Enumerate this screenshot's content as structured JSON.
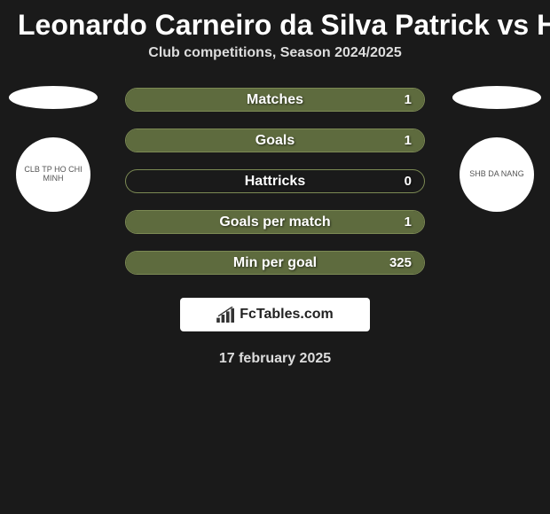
{
  "title": "Leonardo Carneiro da Silva Patrick vs HÃ",
  "subtitle": "Club competitions, Season 2024/2025",
  "date": "17 february 2025",
  "brand": "FcTables.com",
  "background_color": "#1a1a1a",
  "ellipse_color": "#ffffff",
  "badges": {
    "left": {
      "label": "CLB TP HO CHI MINH",
      "bg": "#ffffff"
    },
    "right": {
      "label": "SHB DA NANG",
      "bg": "#ffffff"
    }
  },
  "row_style": {
    "height": 27,
    "border_radius": 14,
    "label_fontsize": 16,
    "value_fontsize": 15
  },
  "stats": [
    {
      "label": "Matches",
      "value": "1",
      "fill_pct": 100,
      "bg": "#1a1a1a",
      "fill": "#5e6b3e",
      "border": "#7c8a54"
    },
    {
      "label": "Goals",
      "value": "1",
      "fill_pct": 100,
      "bg": "#1a1a1a",
      "fill": "#5e6b3e",
      "border": "#7c8a54"
    },
    {
      "label": "Hattricks",
      "value": "0",
      "fill_pct": 0,
      "bg": "#1a1a1a",
      "fill": "#5e6b3e",
      "border": "#7c8a54"
    },
    {
      "label": "Goals per match",
      "value": "1",
      "fill_pct": 100,
      "bg": "#1a1a1a",
      "fill": "#5e6b3e",
      "border": "#7c8a54"
    },
    {
      "label": "Min per goal",
      "value": "325",
      "fill_pct": 100,
      "bg": "#1a1a1a",
      "fill": "#5e6b3e",
      "border": "#7c8a54"
    }
  ]
}
